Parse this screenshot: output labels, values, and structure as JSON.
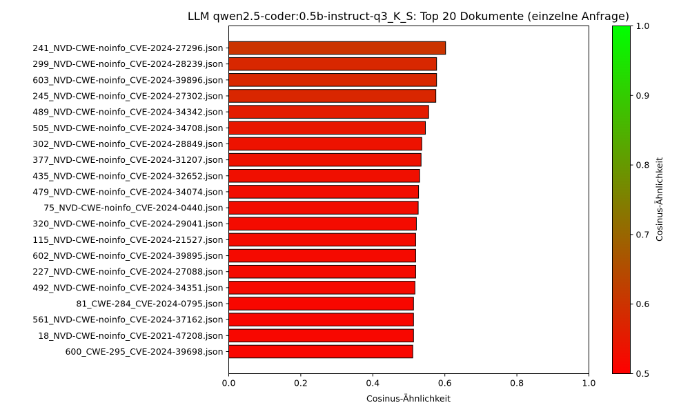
{
  "chart_data": {
    "type": "bar",
    "orientation": "horizontal",
    "title": "LLM qwen2.5-coder:0.5b-instruct-q3_K_S: Top 20 Dokumente (einzelne Anfrage)",
    "xlabel": "Cosinus-Ähnlichkeit",
    "xlim": [
      0.0,
      1.0
    ],
    "xticks": [
      "0.0",
      "0.2",
      "0.4",
      "0.6",
      "0.8",
      "1.0"
    ],
    "grid": false,
    "categories": [
      "241_NVD-CWE-noinfo_CVE-2024-27296.json",
      "299_NVD-CWE-noinfo_CVE-2024-28239.json",
      "603_NVD-CWE-noinfo_CVE-2024-39896.json",
      "245_NVD-CWE-noinfo_CVE-2024-27302.json",
      "489_NVD-CWE-noinfo_CVE-2024-34342.json",
      "505_NVD-CWE-noinfo_CVE-2024-34708.json",
      "302_NVD-CWE-noinfo_CVE-2024-28849.json",
      "377_NVD-CWE-noinfo_CVE-2024-31207.json",
      "435_NVD-CWE-noinfo_CVE-2024-32652.json",
      "479_NVD-CWE-noinfo_CVE-2024-34074.json",
      "75_NVD-CWE-noinfo_CVE-2024-0440.json",
      "320_NVD-CWE-noinfo_CVE-2024-29041.json",
      "115_NVD-CWE-noinfo_CVE-2024-21527.json",
      "602_NVD-CWE-noinfo_CVE-2024-39895.json",
      "227_NVD-CWE-noinfo_CVE-2024-27088.json",
      "492_NVD-CWE-noinfo_CVE-2024-34351.json",
      "81_CWE-284_CVE-2024-0795.json",
      "561_NVD-CWE-noinfo_CVE-2024-37162.json",
      "18_NVD-CWE-noinfo_CVE-2021-47208.json",
      "600_CWE-295_CVE-2024-39698.json"
    ],
    "values": [
      0.602,
      0.577,
      0.577,
      0.575,
      0.555,
      0.546,
      0.536,
      0.534,
      0.53,
      0.527,
      0.526,
      0.521,
      0.519,
      0.519,
      0.519,
      0.517,
      0.513,
      0.513,
      0.513,
      0.511
    ],
    "colorbar": {
      "label": "Cosinus-Ähnlichkeit",
      "range": [
        0.5,
        1.0
      ],
      "ticks": [
        "0.5",
        "0.6",
        "0.7",
        "0.8",
        "0.9",
        "1.0"
      ],
      "color_low": "#ff0000",
      "color_high": "#00ff00"
    },
    "bar_edge_color": "#000000"
  }
}
